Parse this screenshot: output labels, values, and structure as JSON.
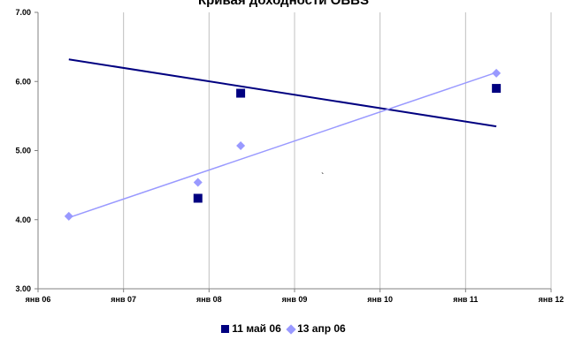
{
  "chart_data": {
    "type": "scatter",
    "title": "Кривая доходности OBBS",
    "xlabel": "",
    "ylabel": "",
    "x_ticks": [
      "янв 06",
      "янв 07",
      "янв 08",
      "янв 09",
      "янв 10",
      "янв 11",
      "янв 12"
    ],
    "y_ticks": [
      "3.00",
      "4.00",
      "5.00",
      "6.00",
      "7.00"
    ],
    "xlim": [
      2006.0,
      2012.0
    ],
    "ylim": [
      3.0,
      7.0
    ],
    "grid": "vertical",
    "legend_position": "bottom",
    "annotation": "`",
    "series": [
      {
        "name": "11 май 06",
        "color": "#000080",
        "marker": "square",
        "points": [
          [
            2007.87,
            4.31
          ],
          [
            2008.37,
            5.83
          ],
          [
            2011.36,
            5.9
          ]
        ],
        "trendline": [
          [
            2006.36,
            6.32
          ],
          [
            2011.36,
            5.35
          ]
        ]
      },
      {
        "name": "13 апр 06",
        "color": "#9999ff",
        "marker": "diamond",
        "points": [
          [
            2006.36,
            4.05
          ],
          [
            2007.87,
            4.54
          ],
          [
            2008.37,
            5.07
          ],
          [
            2011.36,
            6.12
          ]
        ],
        "trendline": [
          [
            2006.36,
            4.03
          ],
          [
            2011.36,
            6.13
          ]
        ]
      }
    ]
  }
}
